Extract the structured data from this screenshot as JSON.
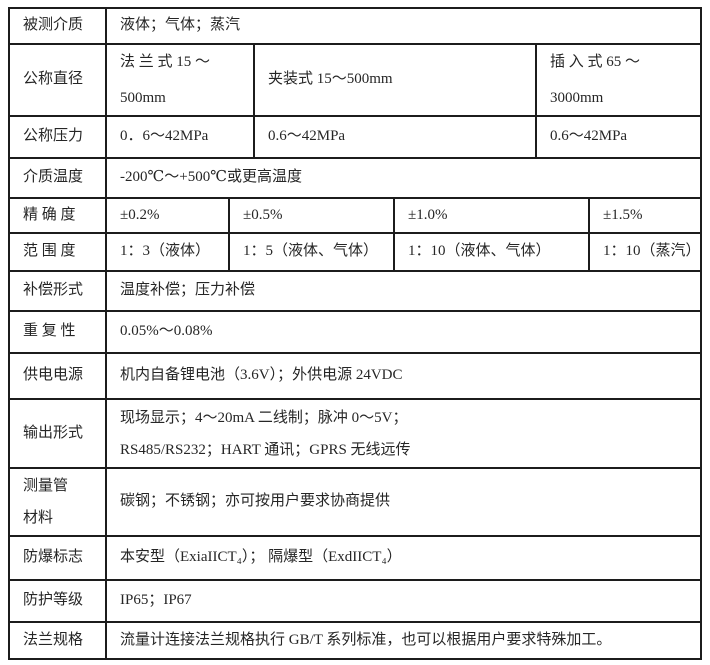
{
  "table": {
    "rows": [
      {
        "label": "被测介质",
        "cells": [
          {
            "text": "液体；气体；蒸汽"
          }
        ]
      },
      {
        "label": "公称直径",
        "cells": [
          {
            "text": "法 兰 式  15 ～\n500mm"
          },
          {
            "text": "夹装式 15～500mm"
          },
          {
            "text": "插 入 式  65 ～\n3000mm"
          }
        ]
      },
      {
        "label": "公称压力",
        "cells": [
          {
            "text": "0．6～42MPa"
          },
          {
            "text": "0.6～42MPa"
          },
          {
            "text": "0.6～42MPa"
          }
        ]
      },
      {
        "label": "介质温度",
        "cells": [
          {
            "text": "-200℃～+500℃或更高温度"
          }
        ]
      },
      {
        "label": "精 确 度",
        "cells": [
          {
            "text": "±0.2%"
          },
          {
            "text": "±0.5%"
          },
          {
            "text": "±1.0%"
          },
          {
            "text": "±1.5%"
          }
        ]
      },
      {
        "label": "范 围 度",
        "cells": [
          {
            "text": "1：3（液体）"
          },
          {
            "text": "1：5（液体、气体）"
          },
          {
            "text": "1：10（液体、气体）"
          },
          {
            "text": "1：10（蒸汽）"
          }
        ]
      },
      {
        "label": "补偿形式",
        "cells": [
          {
            "text": "温度补偿；压力补偿"
          }
        ]
      },
      {
        "label": "重 复 性",
        "cells": [
          {
            "text": "0.05%～0.08%"
          }
        ]
      },
      {
        "label": "供电电源",
        "cells": [
          {
            "text": "机内自备锂电池（3.6V）；外供电源 24VDC"
          }
        ]
      },
      {
        "label": "输出形式",
        "cells": [
          {
            "text": "现场显示；4～20mA 二线制；脉冲 0～5V；\nRS485/RS232；HART 通讯；GPRS 无线远传"
          }
        ]
      },
      {
        "label": "测量管\n材料",
        "cells": [
          {
            "text": "碳钢；不锈钢；亦可按用户要求协商提供"
          }
        ]
      },
      {
        "label": "防爆标志",
        "cells": [
          {
            "text": "本安型（ExiaIICT₄）；  隔爆型（ExdIICT₄）"
          }
        ]
      },
      {
        "label": "防护等级",
        "cells": [
          {
            "text": "IP65；IP67"
          }
        ]
      },
      {
        "label": "法兰规格",
        "cells": [
          {
            "text": "流量计连接法兰规格执行 GB/T 系列标准，也可以根据用户要求特殊加工。"
          }
        ]
      }
    ]
  },
  "colors": {
    "border": "#1c1c1c",
    "text": "#262626",
    "background": "#ffffff"
  }
}
